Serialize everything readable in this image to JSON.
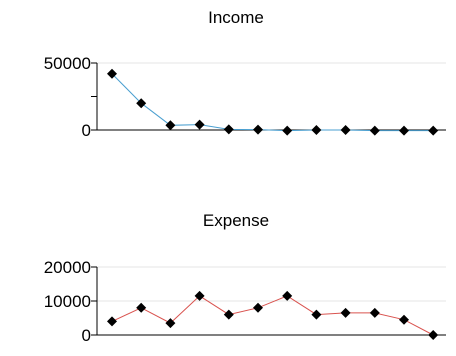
{
  "chart_data": [
    {
      "type": "line",
      "title": "Income",
      "xlabel": "",
      "ylabel": "",
      "ylim": [
        0,
        50000
      ],
      "yticks": [
        0,
        50000
      ],
      "ytick_labels": [
        "0",
        "50000"
      ],
      "grid": true,
      "line_color": "#4a9fd0",
      "marker": "diamond",
      "marker_color": "#000000",
      "x": [
        1,
        2,
        3,
        4,
        5,
        6,
        7,
        8,
        9,
        10,
        11,
        12
      ],
      "values": [
        42000,
        20000,
        3500,
        4000,
        500,
        300,
        -500,
        0,
        0,
        -500,
        -500,
        -500
      ]
    },
    {
      "type": "line",
      "title": "Expense",
      "xlabel": "",
      "ylabel": "",
      "ylim": [
        0,
        20000
      ],
      "yticks": [
        0,
        10000,
        20000
      ],
      "ytick_labels": [
        "0",
        "10000",
        "20000"
      ],
      "grid": true,
      "line_color": "#d9534f",
      "marker": "diamond",
      "marker_color": "#000000",
      "x": [
        1,
        2,
        3,
        4,
        5,
        6,
        7,
        8,
        9,
        10,
        11,
        12
      ],
      "values": [
        4000,
        8000,
        3500,
        11500,
        6000,
        8000,
        11500,
        6000,
        6500,
        6500,
        4500,
        0
      ]
    }
  ]
}
